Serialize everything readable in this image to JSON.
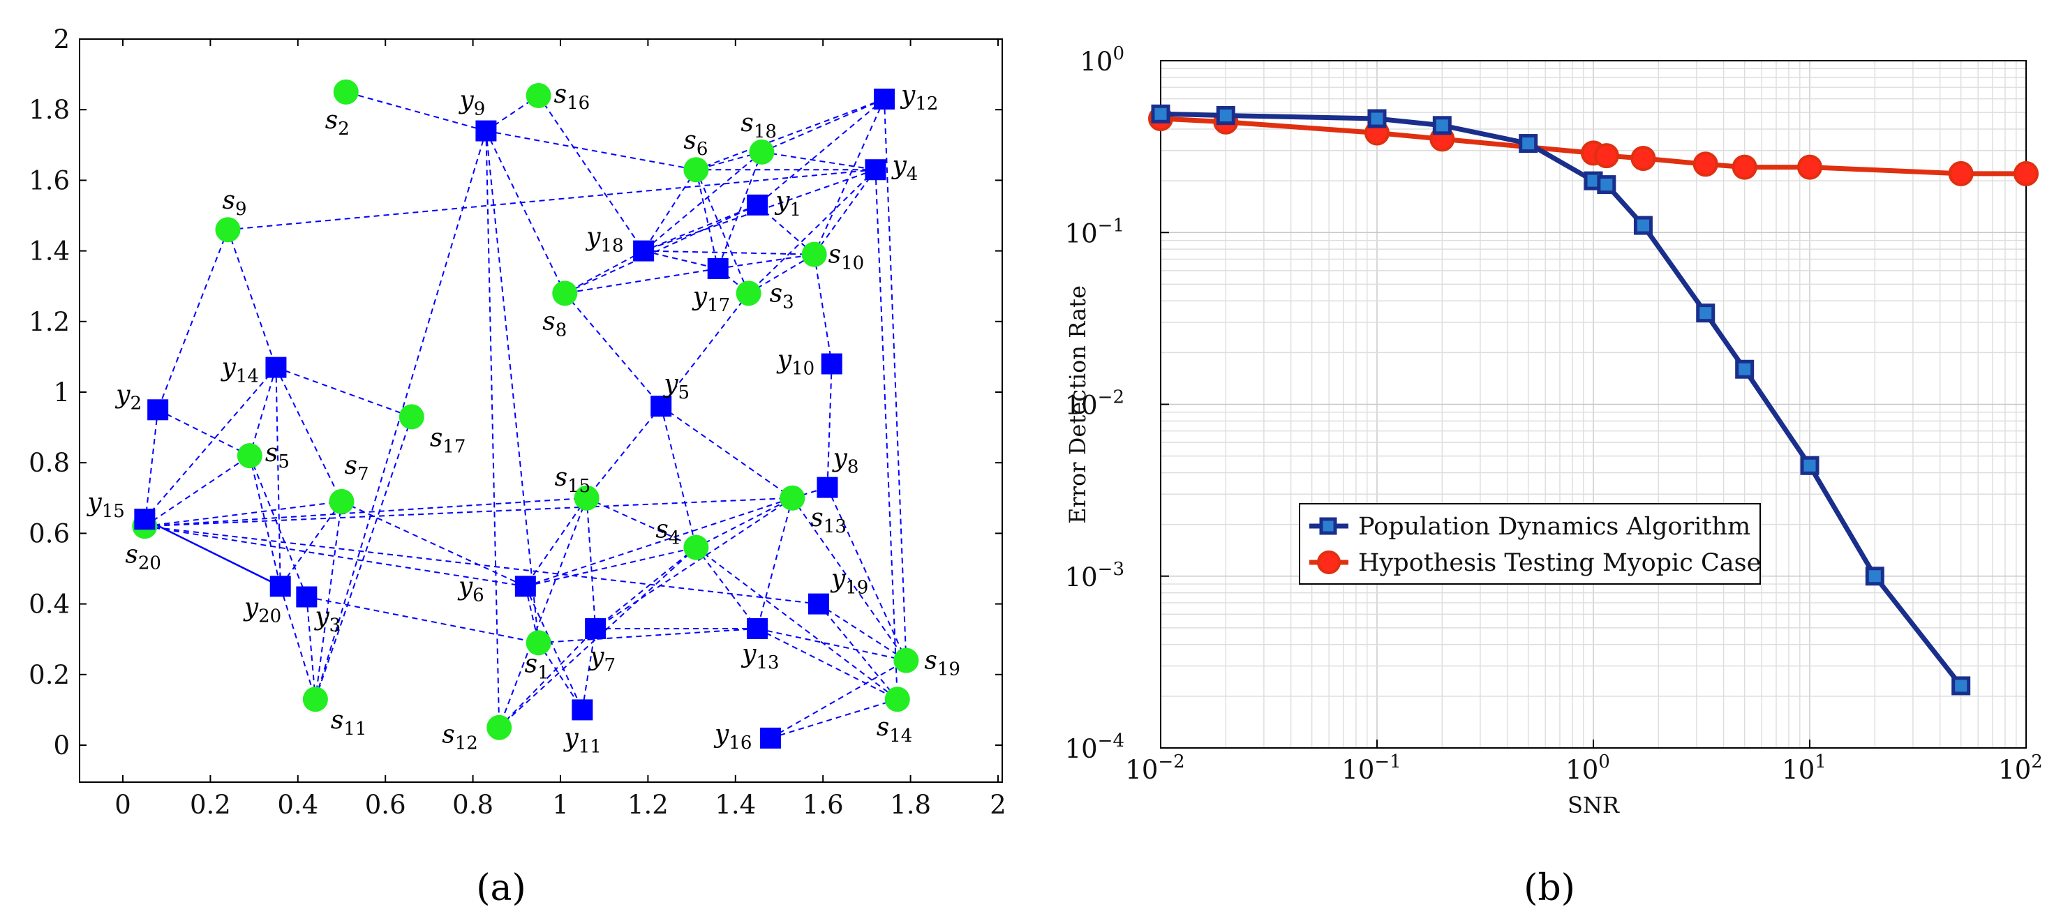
{
  "chart_data": [
    {
      "type": "network",
      "panel_label": "(a)",
      "xlim": [
        -0.1,
        2
      ],
      "ylim": [
        -0.1,
        2
      ],
      "xticks": [
        "0",
        "0.2",
        "0.4",
        "0.6",
        "0.8",
        "1",
        "1.2",
        "1.4",
        "1.6",
        "1.8",
        "2"
      ],
      "yticks": [
        "0",
        "0.2",
        "0.4",
        "0.6",
        "0.8",
        "1",
        "1.2",
        "1.4",
        "1.6",
        "1.8",
        "2"
      ],
      "node_colors": {
        "s": "#22ee22",
        "y": "#0000ff",
        "edge": "#0000ff"
      },
      "nodes": [
        {
          "id": "s1",
          "kind": "s",
          "x": 0.95,
          "y": 0.29
        },
        {
          "id": "s2",
          "kind": "s",
          "x": 0.51,
          "y": 1.85
        },
        {
          "id": "s3",
          "kind": "s",
          "x": 1.43,
          "y": 1.28
        },
        {
          "id": "s4",
          "kind": "s",
          "x": 1.31,
          "y": 0.56
        },
        {
          "id": "s5",
          "kind": "s",
          "x": 0.29,
          "y": 0.82
        },
        {
          "id": "s6",
          "kind": "s",
          "x": 1.31,
          "y": 1.63
        },
        {
          "id": "s7",
          "kind": "s",
          "x": 0.5,
          "y": 0.69
        },
        {
          "id": "s8",
          "kind": "s",
          "x": 1.01,
          "y": 1.28
        },
        {
          "id": "s9",
          "kind": "s",
          "x": 0.24,
          "y": 1.46
        },
        {
          "id": "s10",
          "kind": "s",
          "x": 1.58,
          "y": 1.39
        },
        {
          "id": "s11",
          "kind": "s",
          "x": 0.44,
          "y": 0.13
        },
        {
          "id": "s12",
          "kind": "s",
          "x": 0.86,
          "y": 0.05
        },
        {
          "id": "s13",
          "kind": "s",
          "x": 1.53,
          "y": 0.7
        },
        {
          "id": "s14",
          "kind": "s",
          "x": 1.77,
          "y": 0.13
        },
        {
          "id": "s15",
          "kind": "s",
          "x": 1.06,
          "y": 0.7
        },
        {
          "id": "s16",
          "kind": "s",
          "x": 0.95,
          "y": 1.84
        },
        {
          "id": "s17",
          "kind": "s",
          "x": 0.66,
          "y": 0.93
        },
        {
          "id": "s18",
          "kind": "s",
          "x": 1.46,
          "y": 1.68
        },
        {
          "id": "s19",
          "kind": "s",
          "x": 1.79,
          "y": 0.24
        },
        {
          "id": "s20",
          "kind": "s",
          "x": 0.05,
          "y": 0.62
        },
        {
          "id": "y1",
          "kind": "y",
          "x": 1.45,
          "y": 1.53
        },
        {
          "id": "y2",
          "kind": "y",
          "x": 0.08,
          "y": 0.95
        },
        {
          "id": "y3",
          "kind": "y",
          "x": 0.42,
          "y": 0.42
        },
        {
          "id": "y4",
          "kind": "y",
          "x": 1.72,
          "y": 1.63
        },
        {
          "id": "y5",
          "kind": "y",
          "x": 1.23,
          "y": 0.96
        },
        {
          "id": "y6",
          "kind": "y",
          "x": 0.92,
          "y": 0.45
        },
        {
          "id": "y7",
          "kind": "y",
          "x": 1.08,
          "y": 0.33
        },
        {
          "id": "y8",
          "kind": "y",
          "x": 1.61,
          "y": 0.73
        },
        {
          "id": "y9",
          "kind": "y",
          "x": 0.83,
          "y": 1.74
        },
        {
          "id": "y10",
          "kind": "y",
          "x": 1.62,
          "y": 1.08
        },
        {
          "id": "y11",
          "kind": "y",
          "x": 1.05,
          "y": 0.1
        },
        {
          "id": "y12",
          "kind": "y",
          "x": 1.74,
          "y": 1.83
        },
        {
          "id": "y13",
          "kind": "y",
          "x": 1.45,
          "y": 0.33
        },
        {
          "id": "y14",
          "kind": "y",
          "x": 0.35,
          "y": 1.07
        },
        {
          "id": "y15",
          "kind": "y",
          "x": 0.05,
          "y": 0.64
        },
        {
          "id": "y16",
          "kind": "y",
          "x": 1.48,
          "y": 0.02
        },
        {
          "id": "y17",
          "kind": "y",
          "x": 1.36,
          "y": 1.35
        },
        {
          "id": "y18",
          "kind": "y",
          "x": 1.19,
          "y": 1.4
        },
        {
          "id": "y19",
          "kind": "y",
          "x": 1.59,
          "y": 0.4
        },
        {
          "id": "y20",
          "kind": "y",
          "x": 0.36,
          "y": 0.45
        }
      ],
      "edges": [
        [
          "y9",
          "s2"
        ],
        [
          "y9",
          "s16"
        ],
        [
          "y9",
          "s6"
        ],
        [
          "y9",
          "s8"
        ],
        [
          "y9",
          "s12"
        ],
        [
          "y9",
          "s1"
        ],
        [
          "y9",
          "s11"
        ],
        [
          "s16",
          "y18"
        ],
        [
          "s9",
          "y4"
        ],
        [
          "s9",
          "y2"
        ],
        [
          "s9",
          "y14"
        ],
        [
          "y12",
          "s18"
        ],
        [
          "y12",
          "s6"
        ],
        [
          "y12",
          "s10"
        ],
        [
          "y12",
          "y1"
        ],
        [
          "y12",
          "s19"
        ],
        [
          "s18",
          "y4"
        ],
        [
          "s18",
          "y17"
        ],
        [
          "s18",
          "s6"
        ],
        [
          "s18",
          "y18"
        ],
        [
          "s6",
          "y4"
        ],
        [
          "s6",
          "y17"
        ],
        [
          "s6",
          "y18"
        ],
        [
          "s6",
          "s3"
        ],
        [
          "y4",
          "s10"
        ],
        [
          "y4",
          "s14"
        ],
        [
          "y4",
          "y18"
        ],
        [
          "y4",
          "s3"
        ],
        [
          "y1",
          "y18"
        ],
        [
          "y1",
          "s8"
        ],
        [
          "y1",
          "s10"
        ],
        [
          "y18",
          "s8"
        ],
        [
          "y18",
          "y17"
        ],
        [
          "y18",
          "s10"
        ],
        [
          "y17",
          "s8"
        ],
        [
          "y17",
          "s10"
        ],
        [
          "y17",
          "s3"
        ],
        [
          "s10",
          "y10"
        ],
        [
          "s8",
          "y5"
        ],
        [
          "s3",
          "y5"
        ],
        [
          "s3",
          "s10"
        ],
        [
          "y10",
          "y8"
        ],
        [
          "y5",
          "s15"
        ],
        [
          "y5",
          "s4"
        ],
        [
          "y5",
          "s13"
        ],
        [
          "y14",
          "s17"
        ],
        [
          "y14",
          "s5"
        ],
        [
          "y14",
          "y15"
        ],
        [
          "y14",
          "s7"
        ],
        [
          "y14",
          "y20"
        ],
        [
          "y2",
          "s5"
        ],
        [
          "y2",
          "s20"
        ],
        [
          "s20",
          "s5"
        ],
        [
          "s20",
          "s7"
        ],
        [
          "s20",
          "s15"
        ],
        [
          "s20",
          "s13"
        ],
        [
          "s20",
          "y6"
        ],
        [
          "s20",
          "y19"
        ],
        [
          "s5",
          "y20"
        ],
        [
          "s5",
          "y3"
        ],
        [
          "s7",
          "y20"
        ],
        [
          "s7",
          "s11"
        ],
        [
          "s7",
          "y6"
        ],
        [
          "s17",
          "s11"
        ],
        [
          "s15",
          "y6"
        ],
        [
          "s15",
          "y7"
        ],
        [
          "s15",
          "s4"
        ],
        [
          "s15",
          "s12"
        ],
        [
          "y6",
          "s4"
        ],
        [
          "y6",
          "s1"
        ],
        [
          "y6",
          "y11"
        ],
        [
          "y6",
          "s13"
        ],
        [
          "s4",
          "y7"
        ],
        [
          "s4",
          "y13"
        ],
        [
          "s4",
          "s14"
        ],
        [
          "s4",
          "s12"
        ],
        [
          "s4",
          "s13"
        ],
        [
          "s13",
          "y8"
        ],
        [
          "s13",
          "y13"
        ],
        [
          "s13",
          "y7"
        ],
        [
          "s13",
          "s19"
        ],
        [
          "y8",
          "s19"
        ],
        [
          "y19",
          "s19"
        ],
        [
          "y19",
          "s14"
        ],
        [
          "y3",
          "s11"
        ],
        [
          "y3",
          "s1"
        ],
        [
          "y20",
          "s11"
        ],
        [
          "s1",
          "y11"
        ],
        [
          "s1",
          "y13"
        ],
        [
          "y7",
          "y13"
        ],
        [
          "y13",
          "s19"
        ],
        [
          "y13",
          "s14"
        ],
        [
          "y16",
          "s14"
        ],
        [
          "y16",
          "s19"
        ],
        [
          "y11",
          "y7"
        ],
        [
          "s12",
          "y7"
        ]
      ],
      "solid_edges": [
        [
          "y15",
          "y20"
        ]
      ],
      "label_offsets_note": "label positions are layout"
    },
    {
      "type": "line",
      "panel_label": "(b)",
      "xscale": "log",
      "yscale": "log",
      "xlim": [
        0.01,
        100
      ],
      "ylim": [
        0.0001,
        1
      ],
      "xlabel": "SNR",
      "ylabel": "Error Detection Rate",
      "legend_position": "center-right",
      "series": [
        {
          "name": "Population Dynamics Algorithm",
          "color": "#1a2f8c",
          "marker": "square",
          "x": [
            0.01,
            0.02,
            0.1,
            0.2,
            0.5,
            1,
            1.15,
            1.7,
            3.3,
            5,
            10,
            20,
            50
          ],
          "y": [
            0.49,
            0.48,
            0.46,
            0.42,
            0.33,
            0.2,
            0.19,
            0.11,
            0.034,
            0.016,
            0.0044,
            0.001,
            0.00023
          ]
        },
        {
          "name": "Hypothesis Testing Myopic Case",
          "color": "#e03010",
          "marker": "circle",
          "x": [
            0.01,
            0.02,
            0.1,
            0.2,
            1,
            1.15,
            1.7,
            3.3,
            5,
            10,
            50,
            100
          ],
          "y": [
            0.46,
            0.44,
            0.38,
            0.35,
            0.29,
            0.28,
            0.27,
            0.25,
            0.24,
            0.24,
            0.22,
            0.22
          ]
        }
      ],
      "xticks": [
        {
          "value": 0.01,
          "base": "10",
          "exp": "−2"
        },
        {
          "value": 0.1,
          "base": "10",
          "exp": "−1"
        },
        {
          "value": 1,
          "base": "10",
          "exp": "0"
        },
        {
          "value": 10,
          "base": "10",
          "exp": "1"
        },
        {
          "value": 100,
          "base": "10",
          "exp": "2"
        }
      ],
      "yticks": [
        {
          "value": 0.0001,
          "base": "10",
          "exp": "−4"
        },
        {
          "value": 0.001,
          "base": "10",
          "exp": "−3"
        },
        {
          "value": 0.01,
          "base": "10",
          "exp": "−2"
        },
        {
          "value": 0.1,
          "base": "10",
          "exp": "−1"
        },
        {
          "value": 1,
          "base": "10",
          "exp": "0"
        }
      ]
    }
  ]
}
